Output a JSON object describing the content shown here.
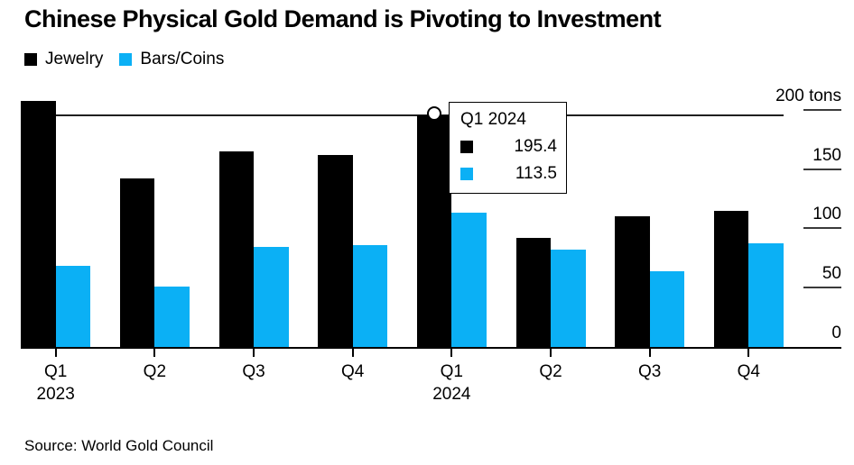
{
  "title": "Chinese Physical Gold Demand is Pivoting to Investment",
  "source": "Source: World Gold Council",
  "colors": {
    "jewelry": "#000000",
    "bars_coins": "#0bb0f5",
    "crosshair": "#1f1f1f",
    "axis": "#000000",
    "background": "#ffffff"
  },
  "legend": [
    {
      "label": "Jewelry",
      "color": "#000000"
    },
    {
      "label": "Bars/Coins",
      "color": "#0bb0f5"
    }
  ],
  "tooltip": {
    "title": "Q1 2024",
    "rows": [
      {
        "series": "Jewelry",
        "color": "#000000",
        "value": "195.4"
      },
      {
        "series": "Bars/Coins",
        "color": "#0bb0f5",
        "value": "113.5"
      }
    ]
  },
  "chart_data": {
    "type": "bar",
    "title": "Chinese Physical Gold Demand is Pivoting to Investment",
    "categories": [
      "Q1 2023",
      "Q2 2023",
      "Q3 2023",
      "Q4 2023",
      "Q1 2024",
      "Q2 2024",
      "Q3 2024",
      "Q4 2024"
    ],
    "x_tick_labels": [
      "Q1",
      "Q2",
      "Q3",
      "Q4",
      "Q1",
      "Q2",
      "Q3",
      "Q4"
    ],
    "x_year_labels": {
      "0": "2023",
      "4": "2024"
    },
    "series": [
      {
        "name": "Jewelry",
        "color": "#000000",
        "values": [
          207,
          142,
          165,
          162,
          195.4,
          92,
          110,
          115
        ]
      },
      {
        "name": "Bars/Coins",
        "color": "#0bb0f5",
        "values": [
          68,
          51,
          84,
          86,
          113.5,
          82,
          64,
          87
        ]
      }
    ],
    "unit": "tons",
    "ylim": [
      0,
      200
    ],
    "yticks": [
      {
        "value": 200,
        "label": "200 tons"
      },
      {
        "value": 150,
        "label": "150"
      },
      {
        "value": 100,
        "label": "100"
      },
      {
        "value": 50,
        "label": "50"
      },
      {
        "value": 0,
        "label": "0"
      }
    ],
    "grid": false,
    "legend_position": "top-left",
    "y_axis_side": "right",
    "highlight": {
      "category": "Q1 2024",
      "category_index": 4,
      "values": {
        "Jewelry": 195.4,
        "Bars/Coins": 113.5
      },
      "marker": "open-circle",
      "crosshair_at": 195.4
    }
  }
}
